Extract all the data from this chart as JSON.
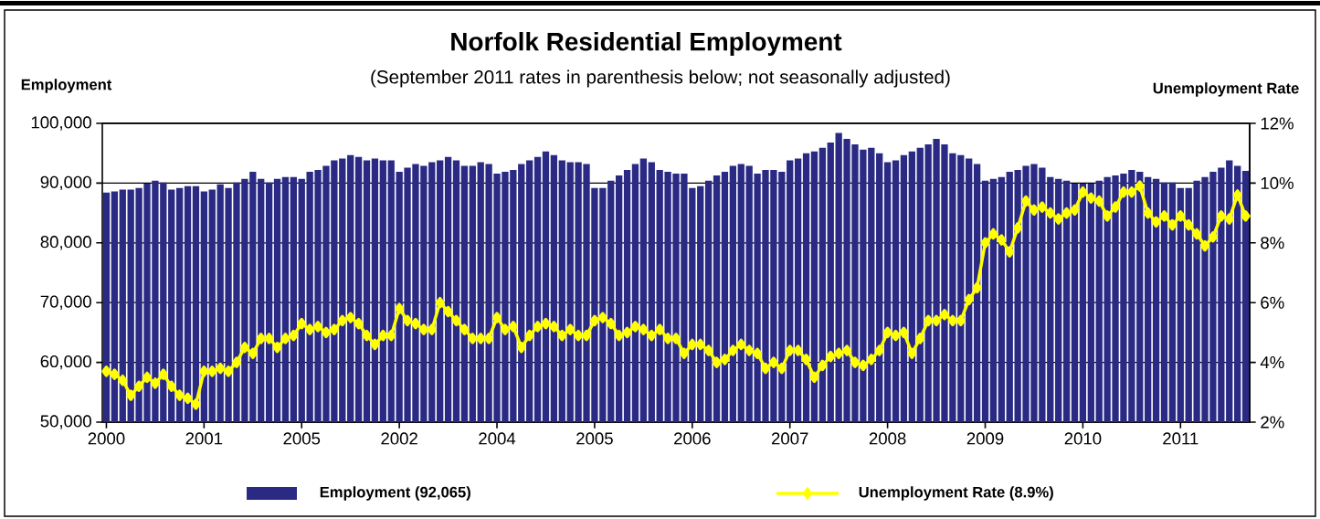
{
  "chart_data": {
    "type": "bar",
    "title": "Norfolk Residential Employment",
    "subtitle": "(September 2011 rates in parenthesis below; not seasonally adjusted)",
    "ylabel": "Employment",
    "y2label": "Unemployment Rate",
    "categories": [
      "2000",
      null,
      null,
      null,
      null,
      null,
      null,
      null,
      null,
      null,
      null,
      null,
      "2001",
      null,
      null,
      null,
      null,
      null,
      null,
      null,
      null,
      null,
      null,
      null,
      "2005",
      null,
      null,
      null,
      null,
      null,
      null,
      null,
      null,
      null,
      null,
      null,
      "2002",
      null,
      null,
      null,
      null,
      null,
      null,
      null,
      null,
      null,
      null,
      null,
      "2004",
      null,
      null,
      null,
      null,
      null,
      null,
      null,
      null,
      null,
      null,
      null,
      "2005",
      null,
      null,
      null,
      null,
      null,
      null,
      null,
      null,
      null,
      null,
      null,
      "2006",
      null,
      null,
      null,
      null,
      null,
      null,
      null,
      null,
      null,
      null,
      null,
      "2007",
      null,
      null,
      null,
      null,
      null,
      null,
      null,
      null,
      null,
      null,
      null,
      "2008",
      null,
      null,
      null,
      null,
      null,
      null,
      null,
      null,
      null,
      null,
      null,
      "2009",
      null,
      null,
      null,
      null,
      null,
      null,
      null,
      null,
      null,
      null,
      null,
      "2010",
      null,
      null,
      null,
      null,
      null,
      null,
      null,
      null,
      null,
      null,
      null,
      "2011",
      null,
      null,
      null,
      null,
      null,
      null,
      null,
      null
    ],
    "series": [
      {
        "name": "Employment (92,065)",
        "color": "#2a2a85",
        "values": [
          88400,
          88600,
          88900,
          88900,
          89200,
          89900,
          90400,
          90100,
          88900,
          89200,
          89500,
          89500,
          88600,
          88900,
          89800,
          89200,
          90100,
          90700,
          91900,
          90700,
          90100,
          90700,
          91000,
          91000,
          90700,
          91900,
          92200,
          92900,
          93800,
          94100,
          94700,
          94400,
          93800,
          94100,
          93800,
          93800,
          91900,
          92600,
          93200,
          92900,
          93500,
          93800,
          94400,
          93800,
          92900,
          92900,
          93500,
          93200,
          91600,
          91900,
          92200,
          93200,
          93800,
          94400,
          95300,
          94700,
          93800,
          93500,
          93500,
          93200,
          89200,
          89200,
          90400,
          91300,
          92200,
          93200,
          94100,
          93500,
          92200,
          91900,
          91600,
          91600,
          89200,
          89500,
          90400,
          91300,
          91900,
          92900,
          93200,
          92900,
          91600,
          92200,
          92200,
          91900,
          93800,
          94100,
          95000,
          95300,
          95900,
          96800,
          98400,
          97400,
          96500,
          95600,
          95900,
          95000,
          93500,
          93800,
          94700,
          95300,
          95900,
          96500,
          97400,
          96500,
          95000,
          94700,
          94100,
          93200,
          90400,
          90700,
          91000,
          91900,
          92200,
          92900,
          93200,
          92600,
          91000,
          90700,
          90400,
          89900,
          89900,
          89900,
          90400,
          91000,
          91300,
          91600,
          92200,
          91900,
          91000,
          90700,
          90100,
          90100,
          89200,
          89200,
          90400,
          91000,
          91900,
          92600,
          93800,
          92900,
          92065
        ]
      },
      {
        "name": "Unemployment Rate (8.9%)",
        "type": "line",
        "axis": "y2",
        "color": "#ffff00",
        "marker": "diamond",
        "values": [
          3.7,
          3.6,
          3.4,
          2.9,
          3.2,
          3.5,
          3.3,
          3.6,
          3.2,
          2.9,
          2.8,
          2.6,
          3.7,
          3.7,
          3.8,
          3.7,
          4.0,
          4.5,
          4.3,
          4.8,
          4.8,
          4.5,
          4.8,
          4.9,
          5.3,
          5.1,
          5.2,
          5.0,
          5.1,
          5.4,
          5.5,
          5.3,
          4.9,
          4.6,
          4.9,
          4.9,
          5.8,
          5.4,
          5.3,
          5.1,
          5.1,
          6.0,
          5.7,
          5.4,
          5.1,
          4.8,
          4.8,
          4.8,
          5.5,
          5.1,
          5.2,
          4.5,
          4.9,
          5.2,
          5.3,
          5.2,
          4.9,
          5.1,
          4.9,
          4.9,
          5.4,
          5.5,
          5.3,
          4.9,
          5.0,
          5.2,
          5.1,
          4.9,
          5.1,
          4.8,
          4.8,
          4.3,
          4.6,
          4.6,
          4.4,
          4.0,
          4.1,
          4.4,
          4.6,
          4.4,
          4.3,
          3.8,
          4.0,
          3.8,
          4.4,
          4.4,
          4.1,
          3.5,
          3.9,
          4.2,
          4.3,
          4.4,
          4.0,
          3.9,
          4.1,
          4.4,
          5.0,
          4.9,
          5.0,
          4.3,
          4.8,
          5.4,
          5.4,
          5.6,
          5.4,
          5.4,
          6.1,
          6.5,
          8.0,
          8.3,
          8.1,
          7.7,
          8.5,
          9.4,
          9.1,
          9.2,
          9.0,
          8.8,
          9.0,
          9.1,
          9.7,
          9.5,
          9.4,
          8.9,
          9.2,
          9.7,
          9.7,
          9.9,
          9.0,
          8.7,
          8.9,
          8.6,
          8.9,
          8.6,
          8.3,
          7.9,
          8.2,
          8.9,
          8.8,
          9.6,
          8.9
        ]
      }
    ],
    "ylim": [
      50000,
      100000
    ],
    "yticks": [
      {
        "value": 50000,
        "label": "50,000"
      },
      {
        "value": 60000,
        "label": "60,000"
      },
      {
        "value": 70000,
        "label": "70,000"
      },
      {
        "value": 80000,
        "label": "80,000"
      },
      {
        "value": 90000,
        "label": "90,000"
      },
      {
        "value": 100000,
        "label": "100,000"
      }
    ],
    "y2lim": [
      2,
      12
    ],
    "y2ticks": [
      {
        "value": 2,
        "label": "2%"
      },
      {
        "value": 4,
        "label": "4%"
      },
      {
        "value": 6,
        "label": "6%"
      },
      {
        "value": 8,
        "label": "8%"
      },
      {
        "value": 10,
        "label": "10%"
      },
      {
        "value": 12,
        "label": "12%"
      }
    ],
    "grid": "y",
    "legend": "bottom"
  }
}
